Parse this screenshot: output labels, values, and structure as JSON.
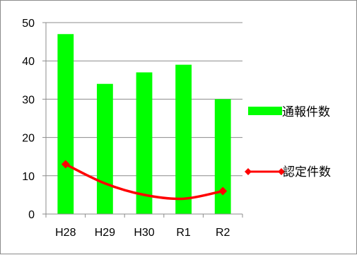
{
  "chart_data": {
    "type": "bar",
    "categories": [
      "H28",
      "H29",
      "H30",
      "R1",
      "R2"
    ],
    "series": [
      {
        "name": "通報件数",
        "type": "bar",
        "color": "#00ff00",
        "values": [
          47,
          34,
          37,
          39,
          30
        ]
      },
      {
        "name": "認定件数",
        "type": "line",
        "color": "#ff0000",
        "marker": "diamond",
        "smooth": true,
        "values": [
          13,
          8,
          5,
          4,
          6
        ]
      }
    ],
    "ylim": [
      0,
      50
    ],
    "yticks": [
      0,
      10,
      20,
      30,
      40,
      50
    ],
    "title": "",
    "xlabel": "",
    "ylabel": "",
    "grid": "horizontal",
    "legend_position": "right"
  }
}
